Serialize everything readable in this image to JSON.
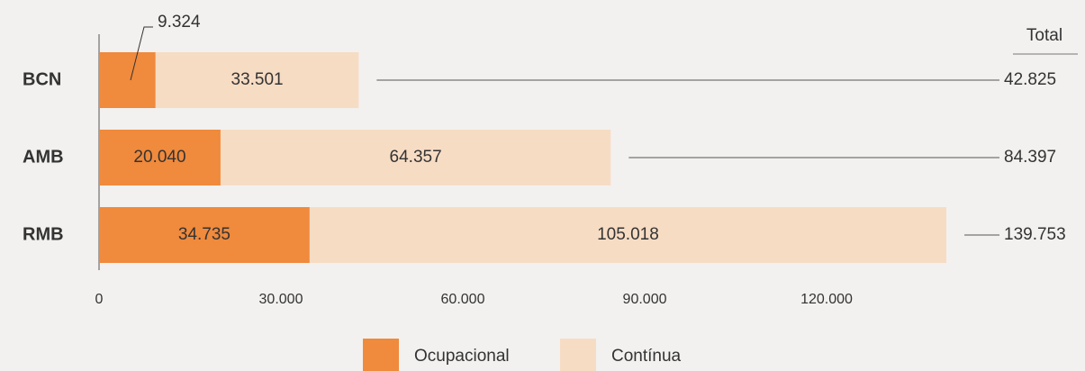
{
  "chart_data": {
    "type": "stacked-bar-horizontal",
    "categories": [
      "BCN",
      "AMB",
      "RMB"
    ],
    "series": [
      {
        "name": "Ocupacional",
        "color": "#f08a3c",
        "values": [
          9324,
          20040,
          34735
        ],
        "value_labels": [
          "9.324",
          "20.040",
          "34.735"
        ]
      },
      {
        "name": "Contínua",
        "color": "#f7dcc4",
        "values": [
          33501,
          64357,
          105018
        ],
        "value_labels": [
          "33.501",
          "64.357",
          "105.018"
        ]
      }
    ],
    "totals": {
      "name": "Total",
      "values": [
        42825,
        84397,
        139753
      ],
      "value_labels": [
        "42.825",
        "84.397",
        "139.753"
      ]
    },
    "xlim": [
      0,
      140000
    ],
    "xticks": [
      0,
      {
        "value": 30000,
        "label": "30.000"
      },
      {
        "value": 60000,
        "label": "60.000"
      },
      {
        "value": 90000,
        "label": "90.000"
      },
      {
        "value": 120000,
        "label": "120.000"
      }
    ],
    "legend": "bottom"
  }
}
